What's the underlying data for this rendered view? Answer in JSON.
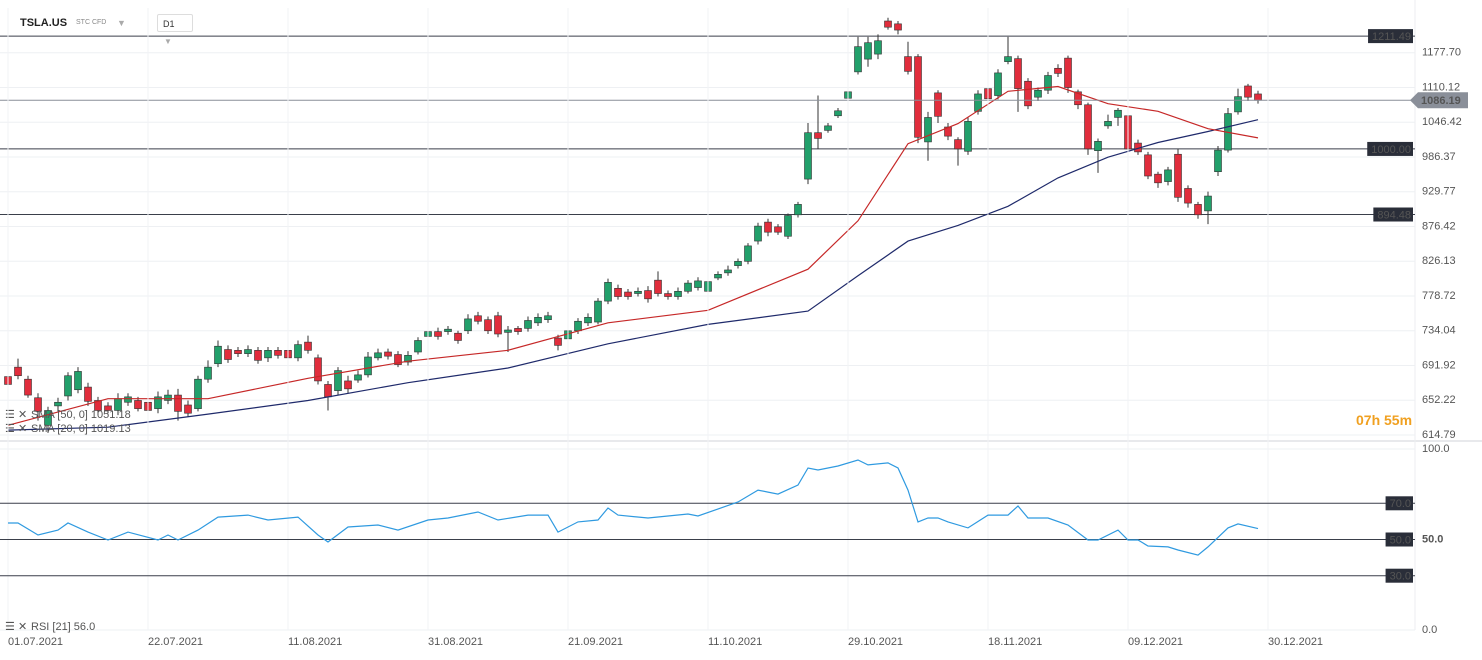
{
  "header": {
    "symbol": "TSLA.US",
    "instrument": "STC CFD",
    "interval": "D1"
  },
  "countdown": "07h 55m",
  "chart_data": [
    {
      "type": "candlestick",
      "log_scale": true,
      "grid": true,
      "up_color": "#22a06b",
      "down_color": "#e12d3c",
      "xlim": [
        -0.8,
        140.7
      ],
      "ylim": [
        609.6,
        1270.8
      ],
      "yticks": [
        {
          "value": 1177.7,
          "label": "1177.70"
        },
        {
          "value": 1110.12,
          "label": "1110.12"
        },
        {
          "value": 1046.42,
          "label": "1046.42"
        },
        {
          "value": 986.37,
          "label": "986.37"
        },
        {
          "value": 929.77,
          "label": "929.77"
        },
        {
          "value": 876.42,
          "label": "876.42"
        },
        {
          "value": 826.13,
          "label": "826.13"
        },
        {
          "value": 778.72,
          "label": "778.72"
        },
        {
          "value": 734.04,
          "label": "734.04"
        },
        {
          "value": 691.92,
          "label": "691.92"
        },
        {
          "value": 652.22,
          "label": "652.22"
        },
        {
          "value": 614.79,
          "label": "614.79"
        }
      ],
      "levels": [
        1211.49,
        {
          "value": 1000,
          "label": "1000.00"
        },
        894.48
      ],
      "current_price": 1086.19,
      "open": [
        679,
        690,
        676,
        655,
        625,
        646,
        657,
        664,
        667,
        652,
        646,
        641,
        650,
        652,
        650,
        643,
        652,
        658,
        647,
        643,
        676,
        694,
        711,
        710,
        706,
        710,
        701,
        710,
        710,
        701,
        720,
        701,
        670,
        663,
        674,
        675,
        681,
        701,
        708,
        705,
        696,
        708,
        727,
        733,
        733,
        731,
        734,
        753,
        748,
        753,
        732,
        737,
        737,
        744,
        748,
        725,
        724,
        734,
        744,
        745,
        772,
        789,
        784,
        782,
        786,
        800,
        782,
        778,
        785,
        790,
        785,
        803,
        810,
        820,
        826,
        855,
        883,
        876,
        862,
        894,
        950,
        1028,
        1032,
        1058,
        1090,
        1140,
        1165,
        1175,
        1243,
        1237,
        1170,
        1170,
        1012,
        1100,
        1038,
        1016,
        996,
        1066,
        1108,
        1095,
        1160,
        1166,
        1122,
        1092,
        1105,
        1147,
        1167,
        1102,
        1078,
        997,
        1040,
        1055,
        1058,
        1010,
        990,
        958,
        946,
        991,
        935,
        910,
        900,
        962,
        998,
        1065,
        1113,
        1098
      ],
      "high": [
        686,
        700,
        680,
        660,
        645,
        655,
        684,
        690,
        672,
        656,
        650,
        660,
        660,
        656,
        655,
        662,
        664,
        665,
        652,
        680,
        698,
        722,
        716,
        714,
        716,
        714,
        714,
        714,
        716,
        722,
        728,
        705,
        674,
        690,
        680,
        686,
        708,
        712,
        712,
        709,
        709,
        726,
        740,
        738,
        740,
        734,
        755,
        758,
        752,
        758,
        740,
        740,
        752,
        756,
        758,
        729,
        738,
        750,
        756,
        776,
        802,
        794,
        788,
        790,
        792,
        812,
        786,
        790,
        800,
        804,
        803,
        812,
        820,
        830,
        852,
        882,
        888,
        880,
        896,
        914,
        1045,
        1095,
        1045,
        1072,
        1108,
        1210,
        1210,
        1215,
        1250,
        1243,
        1200,
        1175,
        1065,
        1105,
        1045,
        1020,
        1055,
        1105,
        1112,
        1145,
        1210,
        1172,
        1128,
        1110,
        1140,
        1155,
        1172,
        1106,
        1082,
        1018,
        1060,
        1072,
        1064,
        1016,
        995,
        962,
        970,
        1000,
        940,
        914,
        930,
        1005,
        1072,
        1108,
        1117,
        1104
      ],
      "low": [
        666,
        676,
        655,
        630,
        617,
        640,
        652,
        660,
        646,
        636,
        638,
        636,
        646,
        640,
        636,
        638,
        648,
        630,
        634,
        640,
        672,
        690,
        695,
        702,
        702,
        694,
        696,
        700,
        697,
        697,
        706,
        670,
        641,
        658,
        660,
        672,
        678,
        698,
        699,
        690,
        692,
        705,
        724,
        723,
        729,
        718,
        730,
        742,
        730,
        726,
        708,
        729,
        733,
        740,
        744,
        710,
        720,
        730,
        740,
        742,
        768,
        774,
        774,
        778,
        770,
        778,
        774,
        774,
        782,
        786,
        782,
        800,
        806,
        816,
        822,
        850,
        862,
        864,
        858,
        890,
        942,
        1000,
        1028,
        1054,
        1085,
        1135,
        1150,
        1165,
        1225,
        1215,
        1135,
        1010,
        980,
        1045,
        1015,
        972,
        990,
        1060,
        1082,
        1088,
        1155,
        1065,
        1070,
        1085,
        1098,
        1130,
        1100,
        1070,
        990,
        960,
        1035,
        1040,
        995,
        990,
        950,
        936,
        940,
        914,
        905,
        888,
        880,
        955,
        994,
        1060,
        1085,
        1080
      ],
      "close": [
        670,
        680,
        658,
        640,
        641,
        650,
        680,
        685,
        651,
        641,
        641,
        654,
        656,
        643,
        641,
        656,
        658,
        640,
        638,
        676,
        690,
        715,
        699,
        706,
        711,
        698,
        710,
        704,
        701,
        717,
        710,
        674,
        656,
        686,
        665,
        681,
        702,
        707,
        703,
        693,
        704,
        722,
        733,
        727,
        736,
        722,
        749,
        746,
        734,
        730,
        735,
        733,
        747,
        751,
        753,
        716,
        734,
        746,
        751,
        772,
        797,
        778,
        778,
        785,
        775,
        782,
        778,
        785,
        796,
        799,
        798,
        808,
        814,
        826,
        848,
        877,
        868,
        868,
        893,
        910,
        1028,
        1018,
        1040,
        1067,
        1102,
        1190,
        1198,
        1202,
        1230,
        1224,
        1141,
        1020,
        1055,
        1057,
        1022,
        1000,
        1048,
        1098,
        1089,
        1138,
        1170,
        1108,
        1076,
        1105,
        1133,
        1137,
        1110,
        1078,
        1000,
        1013,
        1048,
        1068,
        1000,
        995,
        955,
        944,
        965,
        921,
        912,
        894,
        923,
        998,
        1062,
        1093,
        1092,
        1086.19
      ],
      "series": [
        {
          "name": "SMA [50, 0] 1051.18",
          "color": "#1f2a6b",
          "x": [
            0,
            10,
            20,
            30,
            40,
            50,
            60,
            70,
            80,
            85,
            90,
            95,
            100,
            105,
            110,
            115,
            120,
            125
          ],
          "values": [
            620,
            623,
            637,
            652,
            672,
            689,
            718,
            742,
            759,
            806,
            855,
            878,
            907,
            952,
            986,
            1011,
            1030,
            1051
          ]
        },
        {
          "name": "SMA [20, 0] 1019.13",
          "color": "#c62828",
          "x": [
            0,
            10,
            20,
            30,
            40,
            50,
            60,
            70,
            80,
            85,
            90,
            95,
            100,
            105,
            110,
            115,
            120,
            125
          ],
          "values": [
            625,
            654,
            654,
            677,
            697,
            710,
            744,
            760,
            815,
            885,
            1009,
            1044,
            1103,
            1112,
            1080,
            1066,
            1035,
            1019
          ]
        }
      ]
    },
    {
      "type": "line",
      "grid": true,
      "xlim": [
        -0.8,
        140.7
      ],
      "ylim": [
        0,
        100
      ],
      "yticks": [
        {
          "value": 100,
          "label": "100.0"
        },
        {
          "value": 50,
          "label": "50.0"
        },
        {
          "value": 0,
          "label": "0.0"
        }
      ],
      "levels": [
        {
          "value": 70,
          "label": "70.0"
        },
        {
          "value": 50,
          "label": "50.0"
        },
        {
          "value": 30,
          "label": "30.0"
        }
      ],
      "xticks": [
        {
          "value": 0,
          "label": "01.07.2021"
        },
        {
          "value": 14,
          "label": "22.07.2021"
        },
        {
          "value": 28,
          "label": "11.08.2021"
        },
        {
          "value": 42,
          "label": "31.08.2021"
        },
        {
          "value": 56,
          "label": "21.09.2021"
        },
        {
          "value": 70,
          "label": "11.10.2021"
        },
        {
          "value": 84,
          "label": "29.10.2021"
        },
        {
          "value": 98,
          "label": "18.11.2021"
        },
        {
          "value": 112,
          "label": "09.12.2021"
        },
        {
          "value": 126,
          "label": "30.12.2021"
        }
      ],
      "series": [
        {
          "name": "RSI [21] 56.0",
          "color": "#2f9ae0",
          "x": [
            0,
            1,
            3,
            5,
            6,
            8,
            10,
            12,
            15,
            16,
            17,
            19,
            21,
            24,
            26,
            29,
            31,
            32,
            34,
            37,
            39,
            42,
            44,
            47,
            49,
            52,
            54,
            55,
            57,
            59,
            60,
            61,
            64,
            68,
            69,
            73,
            75,
            76,
            77,
            79,
            80,
            81,
            83,
            85,
            86,
            88,
            89,
            90,
            91,
            92,
            93,
            94,
            96,
            98,
            100,
            101,
            102,
            104,
            106,
            108,
            109,
            111,
            112,
            113,
            114,
            116,
            117,
            119,
            120,
            122,
            123,
            125
          ],
          "values": [
            59.1,
            59.1,
            52.5,
            55.2,
            59.1,
            54.1,
            49.7,
            54.1,
            49.7,
            52.5,
            49.7,
            55.2,
            62.4,
            63.5,
            60.8,
            62.4,
            52.5,
            48.6,
            56.9,
            58.0,
            55.2,
            60.8,
            61.9,
            65.2,
            60.8,
            63.5,
            63.5,
            54.1,
            59.7,
            60.8,
            67.4,
            63.5,
            61.9,
            64.1,
            63.0,
            70.7,
            77.3,
            76.2,
            75.1,
            80.1,
            89.5,
            88.4,
            90.6,
            93.9,
            91.2,
            92.3,
            89.5,
            77.3,
            59.7,
            61.9,
            61.9,
            59.7,
            56.4,
            63.5,
            63.5,
            68.5,
            61.9,
            61.9,
            58.0,
            49.7,
            49.7,
            55.2,
            49.7,
            49.7,
            46.4,
            45.9,
            44.2,
            41.4,
            45.9,
            56.4,
            58.6,
            56.0
          ]
        }
      ]
    }
  ]
}
